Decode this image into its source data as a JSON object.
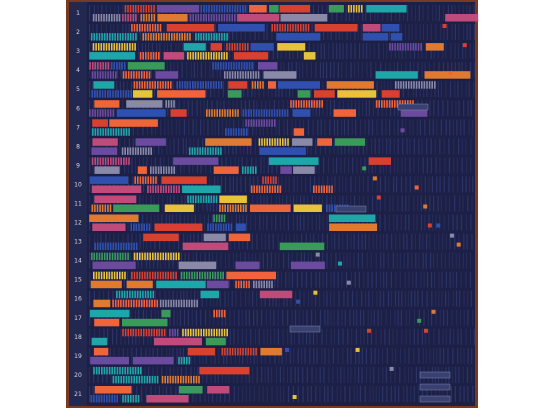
{
  "row_numbers": [
    "1",
    "2",
    "3",
    "4",
    "5",
    "6",
    "7",
    "8",
    "9",
    "10",
    "11",
    "12",
    "13",
    "14",
    "15",
    "16",
    "17",
    "18",
    "19",
    "20",
    "21"
  ]
}
